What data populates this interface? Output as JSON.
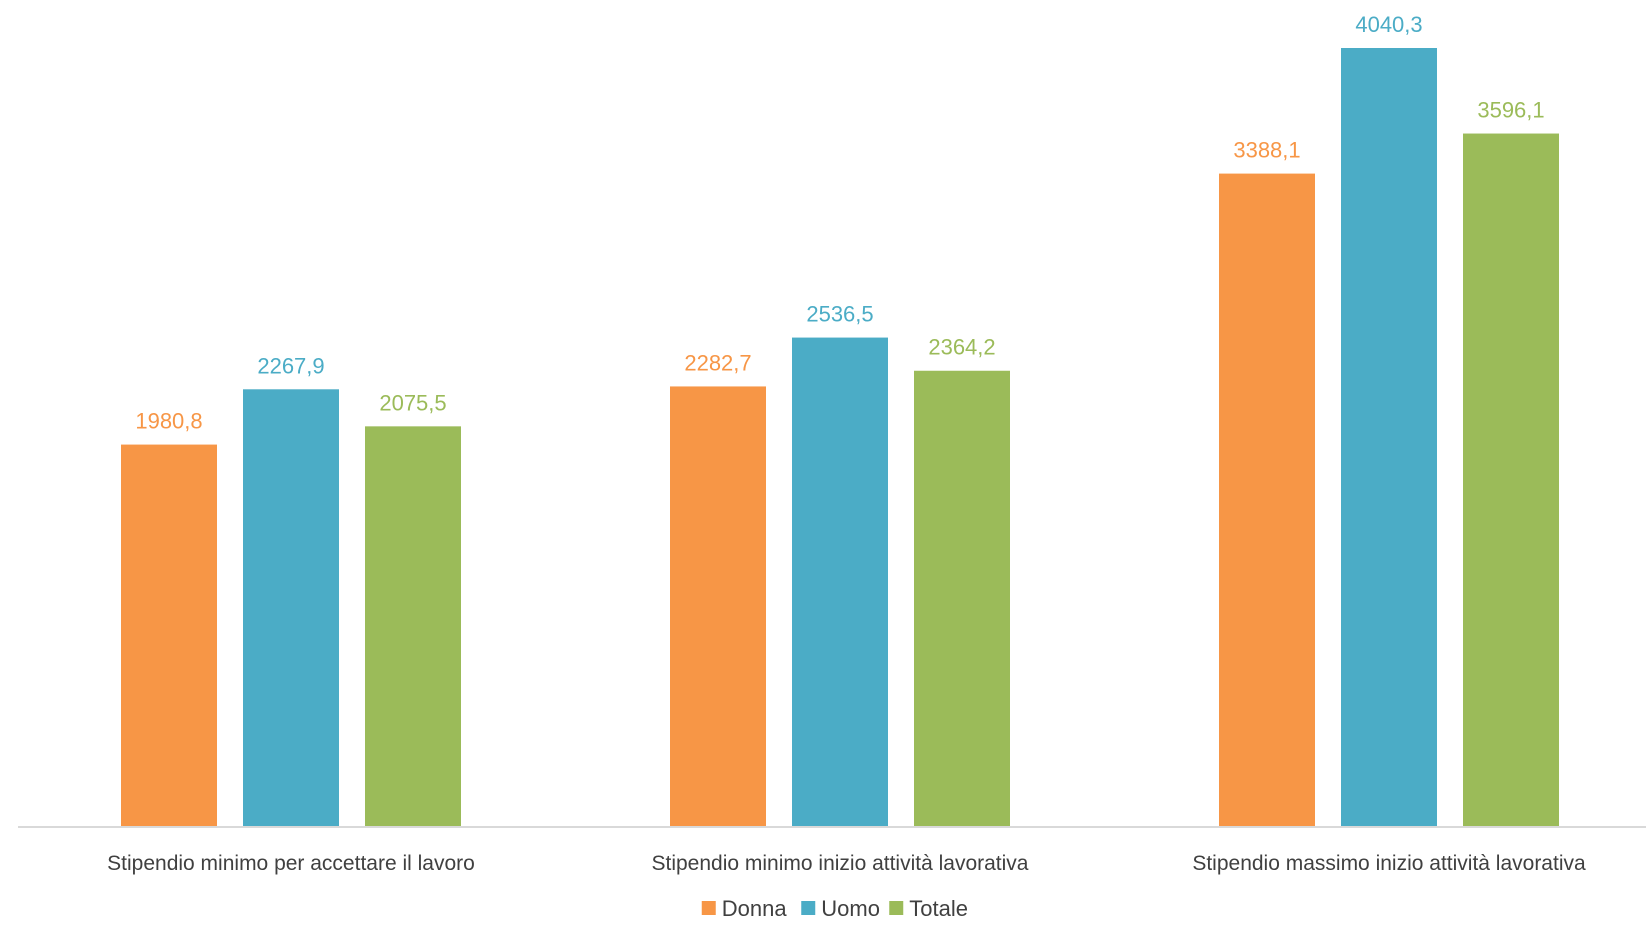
{
  "chart_data": {
    "type": "bar",
    "categories": [
      "Stipendio minimo per accettare il lavoro",
      "Stipendio minimo inizio attività lavorativa",
      "Stipendio massimo inizio attività lavorativa"
    ],
    "series": [
      {
        "name": "Donna",
        "color": "#F79646",
        "values": [
          1980.8,
          2282.7,
          3388.1
        ],
        "labels": [
          "1980,8",
          "2282,7",
          "3388,1"
        ]
      },
      {
        "name": "Uomo",
        "color": "#4BACC6",
        "values": [
          2267.9,
          2536.5,
          4040.3
        ],
        "labels": [
          "2267,9",
          "2536,5",
          "4040,3"
        ]
      },
      {
        "name": "Totale",
        "color": "#9BBB59",
        "values": [
          2075.5,
          2364.2,
          3596.1
        ],
        "labels": [
          "2075,5",
          "2364,2",
          "3596,1"
        ]
      }
    ],
    "ylim": [
      0,
      4300
    ],
    "grid": false,
    "legend": "bottom",
    "axis_color": "#D9D9D9"
  }
}
